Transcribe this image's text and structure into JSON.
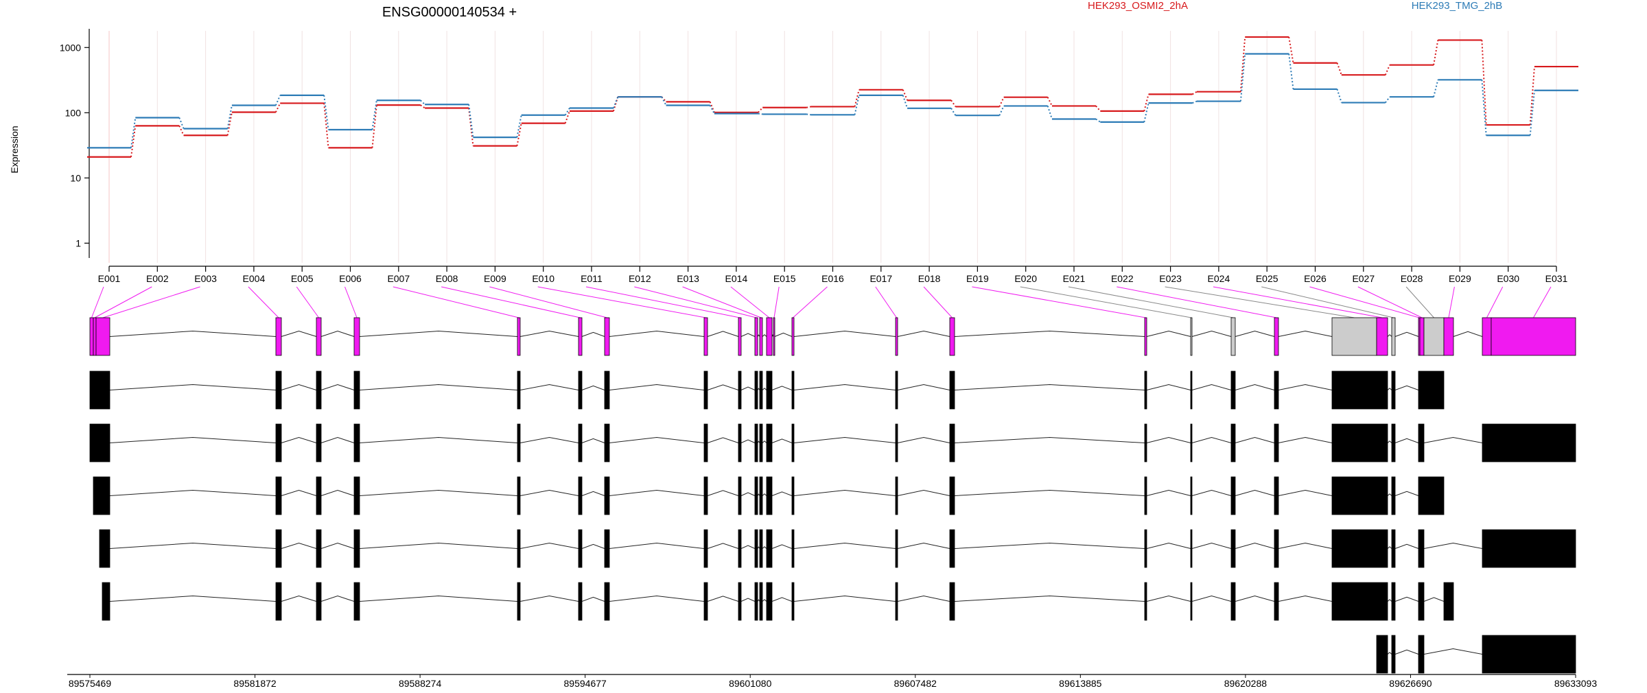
{
  "chart_data": {
    "type": "line",
    "title": "ENSG00000140534 +",
    "ylabel": "Expression",
    "y_scale": "log",
    "ylim": [
      0.5,
      1800
    ],
    "y_ticks": [
      1,
      10,
      100,
      1000
    ],
    "grid": true,
    "legend_position": "top-right",
    "categories": [
      "E001",
      "E002",
      "E003",
      "E004",
      "E005",
      "E006",
      "E007",
      "E008",
      "E009",
      "E010",
      "E011",
      "E012",
      "E013",
      "E014",
      "E015",
      "E016",
      "E017",
      "E018",
      "E019",
      "E020",
      "E021",
      "E022",
      "E023",
      "E024",
      "E025",
      "E026",
      "E027",
      "E028",
      "E029",
      "E030",
      "E031"
    ],
    "series": [
      {
        "name": "HEK293_OSMI2_2hA",
        "color": "#d7191c",
        "values": [
          21,
          63,
          45,
          102,
          140,
          29,
          131,
          118,
          31,
          69,
          106,
          175,
          147,
          101,
          120,
          124,
          225,
          155,
          124,
          173,
          127,
          106,
          192,
          210,
          1450,
          580,
          380,
          540,
          1300,
          65,
          510
        ]
      },
      {
        "name": "HEK293_TMG_2hB",
        "color": "#2c7bb6",
        "values": [
          29,
          84,
          57,
          130,
          185,
          55,
          155,
          134,
          42,
          92,
          118,
          175,
          130,
          97,
          95,
          93,
          185,
          117,
          91,
          127,
          80,
          72,
          141,
          150,
          800,
          230,
          143,
          175,
          320,
          45,
          220
        ]
      }
    ],
    "genome_axis": {
      "ticks": [
        "89575469",
        "89581872",
        "89588274",
        "89594677",
        "89601080",
        "89607482",
        "89613885",
        "89620288",
        "89626690",
        "89633093"
      ]
    },
    "gene_model": {
      "exon_highlight_color": "#f01af0",
      "exon_neutral_color": "#cccccc",
      "transcript_color": "#000000"
    }
  }
}
